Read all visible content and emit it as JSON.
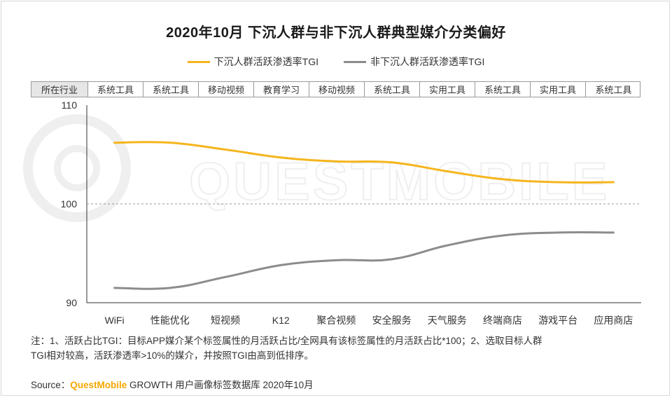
{
  "title": "2020年10月 下沉人群与非下沉人群典型媒介分类偏好",
  "legend": [
    {
      "label": "下沉人群活跃渗透率TGI",
      "color": "#f5b51c"
    },
    {
      "label": "非下沉人群活跃渗透率TGI",
      "color": "#8c8c8c"
    }
  ],
  "industry_header": "所在行业",
  "industries": [
    "系统工具",
    "系统工具",
    "移动视频",
    "教育学习",
    "移动视频",
    "系统工具",
    "实用工具",
    "系统工具",
    "实用工具",
    "系统工具"
  ],
  "watermark": "QUESTMOBILE",
  "chart_data": {
    "type": "line",
    "categories": [
      "WiFi",
      "性能优化",
      "短视频",
      "K12",
      "聚合视频",
      "安全服务",
      "天气服务",
      "终端商店",
      "游戏平台",
      "应用商店"
    ],
    "yticks": [
      90,
      100,
      110
    ],
    "ylim": [
      90,
      110
    ],
    "reference_line": 100,
    "series": [
      {
        "name": "下沉人群活跃渗透率TGI",
        "color": "#f5b51c",
        "values": [
          106.2,
          106.2,
          105.5,
          104.7,
          104.3,
          104.2,
          103.3,
          102.5,
          102.2,
          102.2
        ]
      },
      {
        "name": "非下沉人群活跃渗透率TGI",
        "color": "#8c8c8c",
        "values": [
          91.5,
          91.5,
          92.6,
          93.8,
          94.3,
          94.4,
          95.8,
          96.8,
          97.1,
          97.1
        ]
      }
    ]
  },
  "notes": {
    "line1": "注：1、活跃占比TGI：目标APP媒介某个标签属性的月活跃占比/全网具有该标签属性的月活跃占比*100；2、选取目标人群",
    "line2": "TGI相对较高，活跃渗透率>10%的媒介，并按照TGI由高到低排序。"
  },
  "source": {
    "prefix": "Source：",
    "brand": "QuestMobile",
    "rest": " GROWTH 用户画像标签数据库 2020年10月"
  }
}
